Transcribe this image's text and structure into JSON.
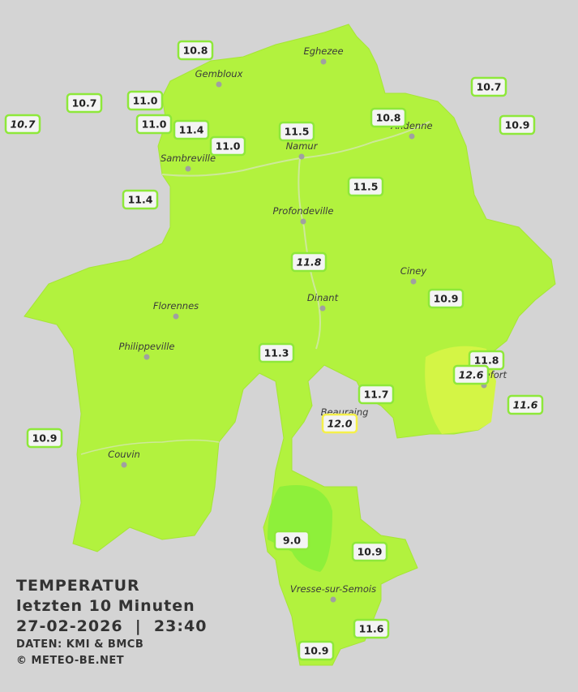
{
  "legend": {
    "title": "TEMPERATUR",
    "subtitle": "letzten 10 Minuten",
    "datetime": "27-02-2026  |  23:40",
    "source": "DATEN: KMI & BMCB",
    "copyright": "© METEO-BE.NET"
  },
  "cities": [
    "Eghezee",
    "Gembloux",
    "Andenne",
    "Namur",
    "Sambreville",
    "Profondeville",
    "Ciney",
    "Dinant",
    "Florennes",
    "Philippeville",
    "Rochefort",
    "Beauraing",
    "Couvin",
    "Vresse-sur-Semois"
  ],
  "stations": [
    {
      "label": "10.8"
    },
    {
      "label": "10.7"
    },
    {
      "label": "10.7",
      "italic": true
    },
    {
      "label": "11.0"
    },
    {
      "label": "11.0"
    },
    {
      "label": "11.4"
    },
    {
      "label": "11.0"
    },
    {
      "label": "11.5"
    },
    {
      "label": "10.8"
    },
    {
      "label": "10.7"
    },
    {
      "label": "10.9"
    },
    {
      "label": "11.4"
    },
    {
      "label": "11.5"
    },
    {
      "label": "11.8",
      "italic": true
    },
    {
      "label": "10.9"
    },
    {
      "label": "11.3"
    },
    {
      "label": "11.8"
    },
    {
      "label": "12.6",
      "italic": true
    },
    {
      "label": "11.6",
      "italic": true
    },
    {
      "label": "11.7"
    },
    {
      "label": "12.0",
      "italic": true,
      "border": "#f5f04a"
    },
    {
      "label": "10.9"
    },
    {
      "label": "9.0"
    },
    {
      "label": "10.9"
    },
    {
      "label": "11.6"
    },
    {
      "label": "10.9"
    }
  ]
}
